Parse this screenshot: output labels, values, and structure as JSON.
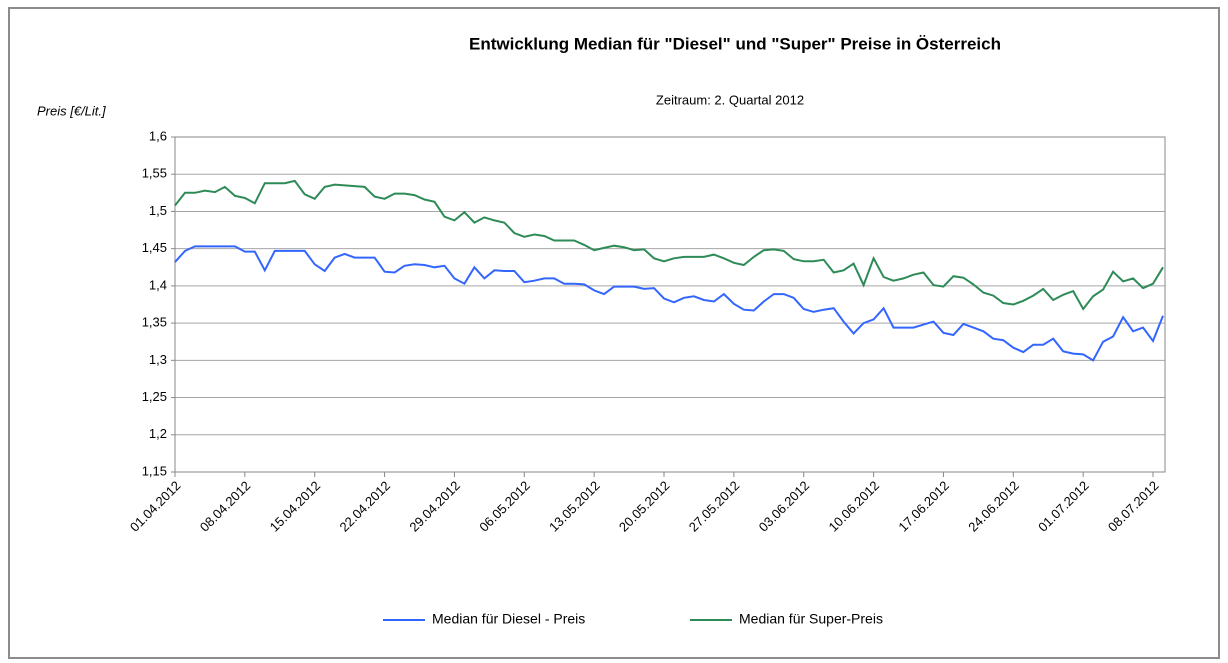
{
  "chart_data": {
    "type": "line",
    "title": "Entwicklung Median für \"Diesel\" und \"Super\" Preise in Österreich",
    "subtitle": "Zeitraum: 2. Quartal 2012",
    "y_label": "Preis [€/Lit.]",
    "categories": [
      "01.04.2012",
      null,
      null,
      null,
      null,
      null,
      null,
      "08.04.2012",
      null,
      null,
      null,
      null,
      null,
      null,
      "15.04.2012",
      null,
      null,
      null,
      null,
      null,
      null,
      "22.04.2012",
      null,
      null,
      null,
      null,
      null,
      null,
      "29.04.2012",
      null,
      null,
      null,
      null,
      null,
      null,
      "06.05.2012",
      null,
      null,
      null,
      null,
      null,
      null,
      "13.05.2012",
      null,
      null,
      null,
      null,
      null,
      null,
      "20.05.2012",
      null,
      null,
      null,
      null,
      null,
      null,
      "27.05.2012",
      null,
      null,
      null,
      null,
      null,
      null,
      "03.06.2012",
      null,
      null,
      null,
      null,
      null,
      null,
      "10.06.2012",
      null,
      null,
      null,
      null,
      null,
      null,
      "17.06.2012",
      null,
      null,
      null,
      null,
      null,
      null,
      "24.06.2012",
      null,
      null,
      null,
      null,
      null,
      null,
      "01.07.2012",
      null,
      null,
      null,
      null,
      null,
      null,
      "08.07.2012",
      null
    ],
    "series": [
      {
        "name": "Median für Diesel - Preis",
        "color": "#3366ff",
        "values": [
          1.432,
          1.447,
          1.453,
          1.453,
          1.453,
          1.453,
          1.453,
          1.446,
          1.446,
          1.421,
          1.447,
          1.447,
          1.447,
          1.447,
          1.429,
          1.42,
          1.438,
          1.443,
          1.438,
          1.438,
          1.438,
          1.419,
          1.418,
          1.427,
          1.429,
          1.428,
          1.425,
          1.427,
          1.41,
          1.403,
          1.425,
          1.41,
          1.421,
          1.42,
          1.42,
          1.405,
          1.407,
          1.41,
          1.41,
          1.403,
          1.403,
          1.402,
          1.394,
          1.389,
          1.399,
          1.399,
          1.399,
          1.396,
          1.397,
          1.383,
          1.378,
          1.384,
          1.386,
          1.381,
          1.379,
          1.389,
          1.376,
          1.368,
          1.367,
          1.379,
          1.389,
          1.389,
          1.384,
          1.369,
          1.365,
          1.368,
          1.37,
          1.352,
          1.336,
          1.35,
          1.355,
          1.37,
          1.344,
          1.344,
          1.344,
          1.348,
          1.352,
          1.337,
          1.334,
          1.349,
          1.344,
          1.339,
          1.329,
          1.327,
          1.317,
          1.311,
          1.321,
          1.321,
          1.329,
          1.312,
          1.309,
          1.308,
          1.3,
          1.325,
          1.332,
          1.358,
          1.339,
          1.344,
          1.326,
          1.36
        ]
      },
      {
        "name": "Median für Super-Preis",
        "color": "#2e8b57",
        "values": [
          1.508,
          1.525,
          1.525,
          1.528,
          1.526,
          1.533,
          1.521,
          1.518,
          1.511,
          1.538,
          1.538,
          1.538,
          1.541,
          1.523,
          1.517,
          1.533,
          1.536,
          1.535,
          1.534,
          1.533,
          1.52,
          1.517,
          1.524,
          1.524,
          1.522,
          1.516,
          1.513,
          1.493,
          1.488,
          1.499,
          1.485,
          1.492,
          1.488,
          1.485,
          1.471,
          1.466,
          1.469,
          1.467,
          1.461,
          1.461,
          1.461,
          1.455,
          1.448,
          1.451,
          1.454,
          1.452,
          1.448,
          1.449,
          1.437,
          1.433,
          1.437,
          1.439,
          1.439,
          1.439,
          1.442,
          1.437,
          1.431,
          1.428,
          1.439,
          1.448,
          1.449,
          1.447,
          1.436,
          1.433,
          1.433,
          1.435,
          1.418,
          1.421,
          1.43,
          1.401,
          1.437,
          1.412,
          1.407,
          1.41,
          1.415,
          1.418,
          1.401,
          1.399,
          1.413,
          1.411,
          1.402,
          1.391,
          1.387,
          1.377,
          1.375,
          1.38,
          1.387,
          1.396,
          1.381,
          1.388,
          1.393,
          1.369,
          1.386,
          1.395,
          1.419,
          1.406,
          1.41,
          1.397,
          1.403,
          1.425
        ]
      }
    ],
    "ylim": [
      1.15,
      1.6
    ],
    "yticks": [
      {
        "value": 1.15,
        "label": "1,15"
      },
      {
        "value": 1.2,
        "label": "1,2"
      },
      {
        "value": 1.25,
        "label": "1,25"
      },
      {
        "value": 1.3,
        "label": "1,3"
      },
      {
        "value": 1.35,
        "label": "1,35"
      },
      {
        "value": 1.4,
        "label": "1,4"
      },
      {
        "value": 1.45,
        "label": "1,45"
      },
      {
        "value": 1.5,
        "label": "1,5"
      },
      {
        "value": 1.55,
        "label": "1,55"
      },
      {
        "value": 1.6,
        "label": "1,6"
      }
    ],
    "grid": true,
    "legend": "bottom"
  }
}
